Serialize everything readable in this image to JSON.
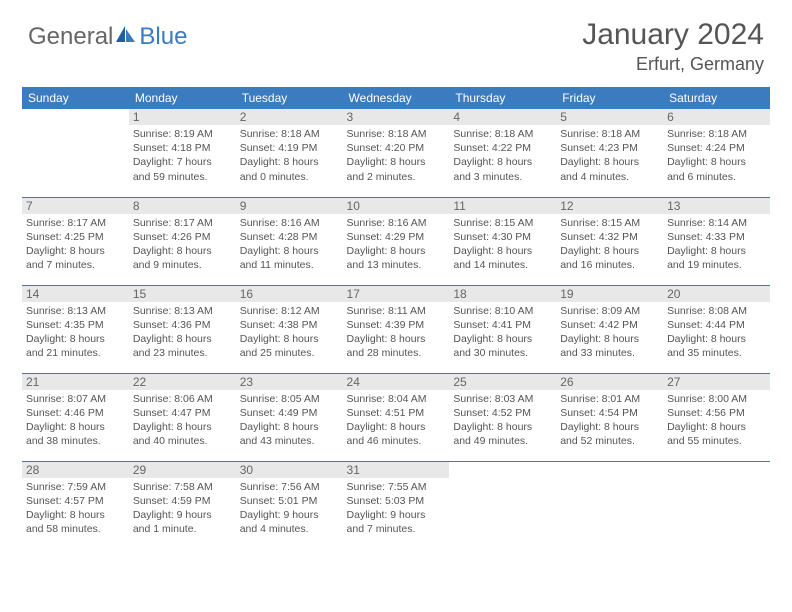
{
  "logo": {
    "text1": "General",
    "text2": "Blue"
  },
  "title": "January 2024",
  "location": "Erfurt, Germany",
  "colors": {
    "accent": "#3b7bbf",
    "text": "#555555",
    "daybar": "#e8e8e8",
    "bg": "#ffffff"
  },
  "typography": {
    "title_fontsize": 30,
    "location_fontsize": 18,
    "header_fontsize": 12,
    "cell_fontsize": 10.5
  },
  "days_header": [
    "Sunday",
    "Monday",
    "Tuesday",
    "Wednesday",
    "Thursday",
    "Friday",
    "Saturday"
  ],
  "weeks": [
    [
      null,
      {
        "n": "1",
        "sr": "Sunrise: 8:19 AM",
        "ss": "Sunset: 4:18 PM",
        "d1": "Daylight: 7 hours",
        "d2": "and 59 minutes."
      },
      {
        "n": "2",
        "sr": "Sunrise: 8:18 AM",
        "ss": "Sunset: 4:19 PM",
        "d1": "Daylight: 8 hours",
        "d2": "and 0 minutes."
      },
      {
        "n": "3",
        "sr": "Sunrise: 8:18 AM",
        "ss": "Sunset: 4:20 PM",
        "d1": "Daylight: 8 hours",
        "d2": "and 2 minutes."
      },
      {
        "n": "4",
        "sr": "Sunrise: 8:18 AM",
        "ss": "Sunset: 4:22 PM",
        "d1": "Daylight: 8 hours",
        "d2": "and 3 minutes."
      },
      {
        "n": "5",
        "sr": "Sunrise: 8:18 AM",
        "ss": "Sunset: 4:23 PM",
        "d1": "Daylight: 8 hours",
        "d2": "and 4 minutes."
      },
      {
        "n": "6",
        "sr": "Sunrise: 8:18 AM",
        "ss": "Sunset: 4:24 PM",
        "d1": "Daylight: 8 hours",
        "d2": "and 6 minutes."
      }
    ],
    [
      {
        "n": "7",
        "sr": "Sunrise: 8:17 AM",
        "ss": "Sunset: 4:25 PM",
        "d1": "Daylight: 8 hours",
        "d2": "and 7 minutes."
      },
      {
        "n": "8",
        "sr": "Sunrise: 8:17 AM",
        "ss": "Sunset: 4:26 PM",
        "d1": "Daylight: 8 hours",
        "d2": "and 9 minutes."
      },
      {
        "n": "9",
        "sr": "Sunrise: 8:16 AM",
        "ss": "Sunset: 4:28 PM",
        "d1": "Daylight: 8 hours",
        "d2": "and 11 minutes."
      },
      {
        "n": "10",
        "sr": "Sunrise: 8:16 AM",
        "ss": "Sunset: 4:29 PM",
        "d1": "Daylight: 8 hours",
        "d2": "and 13 minutes."
      },
      {
        "n": "11",
        "sr": "Sunrise: 8:15 AM",
        "ss": "Sunset: 4:30 PM",
        "d1": "Daylight: 8 hours",
        "d2": "and 14 minutes."
      },
      {
        "n": "12",
        "sr": "Sunrise: 8:15 AM",
        "ss": "Sunset: 4:32 PM",
        "d1": "Daylight: 8 hours",
        "d2": "and 16 minutes."
      },
      {
        "n": "13",
        "sr": "Sunrise: 8:14 AM",
        "ss": "Sunset: 4:33 PM",
        "d1": "Daylight: 8 hours",
        "d2": "and 19 minutes."
      }
    ],
    [
      {
        "n": "14",
        "sr": "Sunrise: 8:13 AM",
        "ss": "Sunset: 4:35 PM",
        "d1": "Daylight: 8 hours",
        "d2": "and 21 minutes."
      },
      {
        "n": "15",
        "sr": "Sunrise: 8:13 AM",
        "ss": "Sunset: 4:36 PM",
        "d1": "Daylight: 8 hours",
        "d2": "and 23 minutes."
      },
      {
        "n": "16",
        "sr": "Sunrise: 8:12 AM",
        "ss": "Sunset: 4:38 PM",
        "d1": "Daylight: 8 hours",
        "d2": "and 25 minutes."
      },
      {
        "n": "17",
        "sr": "Sunrise: 8:11 AM",
        "ss": "Sunset: 4:39 PM",
        "d1": "Daylight: 8 hours",
        "d2": "and 28 minutes."
      },
      {
        "n": "18",
        "sr": "Sunrise: 8:10 AM",
        "ss": "Sunset: 4:41 PM",
        "d1": "Daylight: 8 hours",
        "d2": "and 30 minutes."
      },
      {
        "n": "19",
        "sr": "Sunrise: 8:09 AM",
        "ss": "Sunset: 4:42 PM",
        "d1": "Daylight: 8 hours",
        "d2": "and 33 minutes."
      },
      {
        "n": "20",
        "sr": "Sunrise: 8:08 AM",
        "ss": "Sunset: 4:44 PM",
        "d1": "Daylight: 8 hours",
        "d2": "and 35 minutes."
      }
    ],
    [
      {
        "n": "21",
        "sr": "Sunrise: 8:07 AM",
        "ss": "Sunset: 4:46 PM",
        "d1": "Daylight: 8 hours",
        "d2": "and 38 minutes."
      },
      {
        "n": "22",
        "sr": "Sunrise: 8:06 AM",
        "ss": "Sunset: 4:47 PM",
        "d1": "Daylight: 8 hours",
        "d2": "and 40 minutes."
      },
      {
        "n": "23",
        "sr": "Sunrise: 8:05 AM",
        "ss": "Sunset: 4:49 PM",
        "d1": "Daylight: 8 hours",
        "d2": "and 43 minutes."
      },
      {
        "n": "24",
        "sr": "Sunrise: 8:04 AM",
        "ss": "Sunset: 4:51 PM",
        "d1": "Daylight: 8 hours",
        "d2": "and 46 minutes."
      },
      {
        "n": "25",
        "sr": "Sunrise: 8:03 AM",
        "ss": "Sunset: 4:52 PM",
        "d1": "Daylight: 8 hours",
        "d2": "and 49 minutes."
      },
      {
        "n": "26",
        "sr": "Sunrise: 8:01 AM",
        "ss": "Sunset: 4:54 PM",
        "d1": "Daylight: 8 hours",
        "d2": "and 52 minutes."
      },
      {
        "n": "27",
        "sr": "Sunrise: 8:00 AM",
        "ss": "Sunset: 4:56 PM",
        "d1": "Daylight: 8 hours",
        "d2": "and 55 minutes."
      }
    ],
    [
      {
        "n": "28",
        "sr": "Sunrise: 7:59 AM",
        "ss": "Sunset: 4:57 PM",
        "d1": "Daylight: 8 hours",
        "d2": "and 58 minutes."
      },
      {
        "n": "29",
        "sr": "Sunrise: 7:58 AM",
        "ss": "Sunset: 4:59 PM",
        "d1": "Daylight: 9 hours",
        "d2": "and 1 minute."
      },
      {
        "n": "30",
        "sr": "Sunrise: 7:56 AM",
        "ss": "Sunset: 5:01 PM",
        "d1": "Daylight: 9 hours",
        "d2": "and 4 minutes."
      },
      {
        "n": "31",
        "sr": "Sunrise: 7:55 AM",
        "ss": "Sunset: 5:03 PM",
        "d1": "Daylight: 9 hours",
        "d2": "and 7 minutes."
      },
      null,
      null,
      null
    ]
  ]
}
